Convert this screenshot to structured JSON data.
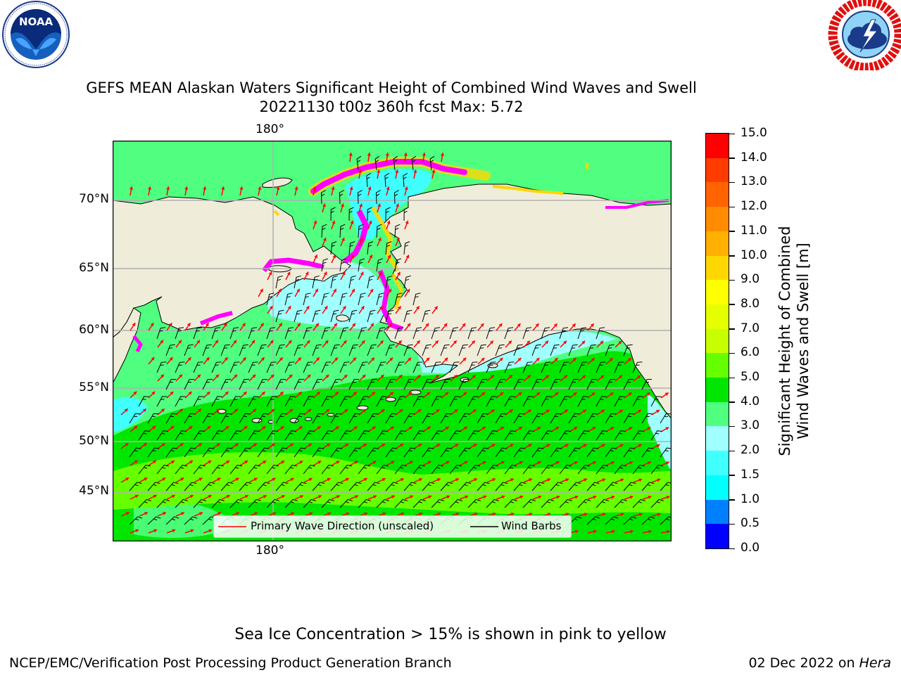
{
  "header": {
    "title_line1": "GEFS MEAN Alaskan Waters Significant Height of Combined Wind Waves and Swell",
    "title_line2": "20221130 t00z 360h fcst   Max: 5.72"
  },
  "logos": {
    "noaa": {
      "text": "NOAA",
      "ring_text": "NATIONAL OCEANIC AND ATMOSPHERIC ADMINISTRATION · U.S. DEPARTMENT OF COMMERCE"
    },
    "nws": {
      "ring_text": "NATIONAL WEATHER SERVICE"
    }
  },
  "map": {
    "lon_label_top": "180°",
    "lon_label_bottom": "180°",
    "lat_labels": [
      "70°N",
      "65°N",
      "60°N",
      "55°N",
      "50°N",
      "45°N"
    ],
    "legend": {
      "wave_label": "Primary Wave Direction (unscaled)",
      "wind_label": "Wind Barbs",
      "wave_color": "#ff0000",
      "wind_color": "#000000"
    }
  },
  "colorbar": {
    "label_line1": "Significant Height of Combined",
    "label_line2": "Wind Waves and Swell [m]",
    "ticks": [
      "15.0",
      "14.0",
      "13.0",
      "12.0",
      "11.0",
      "10.0",
      "9.0",
      "8.0",
      "7.0",
      "6.0",
      "5.0",
      "4.0",
      "3.0",
      "2.0",
      "1.5",
      "1.0",
      "0.5",
      "0.0"
    ],
    "colors_bottom_to_top": [
      "#0000ff",
      "#0080ff",
      "#00ffff",
      "#40ffff",
      "#a0ffff",
      "#50ff80",
      "#00e600",
      "#66ff00",
      "#c8ff00",
      "#e6ff00",
      "#ffff00",
      "#ffd700",
      "#ffb000",
      "#ff8c00",
      "#ff6400",
      "#ff3c00",
      "#ff0000"
    ]
  },
  "notes": {
    "sea_ice": "Sea Ice Concentration > 15% is shown in pink to yellow"
  },
  "footer": {
    "left": "NCEP/EMC/Verification Post Processing Product Generation Branch",
    "right_date": "02 Dec 2022 on ",
    "right_host": "Hera"
  },
  "palette": {
    "land": "#efedda",
    "grid": "#b0b0b0",
    "ice_pink": "#ff00ff",
    "ice_yellow": "#ffd700"
  }
}
